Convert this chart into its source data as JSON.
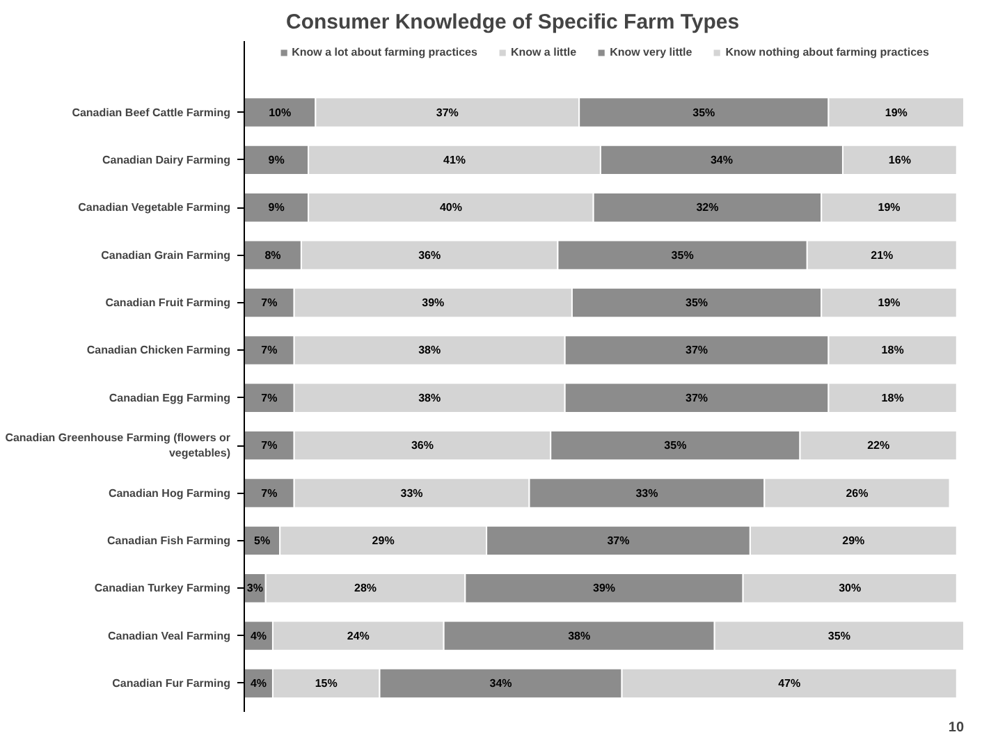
{
  "chart_data": {
    "type": "bar",
    "orientation": "horizontal",
    "stacked": true,
    "title": "Consumer Knowledge of Specific Farm Types",
    "categories": [
      "Canadian Beef Cattle Farming",
      "Canadian Dairy Farming",
      "Canadian Vegetable Farming",
      "Canadian Grain Farming",
      "Canadian Fruit Farming",
      "Canadian Chicken Farming",
      "Canadian Egg Farming",
      "Canadian Greenhouse Farming (flowers or vegetables)",
      "Canadian Hog Farming",
      "Canadian Fish Farming",
      "Canadian Turkey Farming",
      "Canadian Veal Farming",
      "Canadian Fur Farming"
    ],
    "series": [
      {
        "name": "Know a lot about farming practices",
        "color": "#8c8c8c",
        "values": [
          10,
          9,
          9,
          8,
          7,
          7,
          7,
          7,
          7,
          5,
          3,
          4,
          4
        ],
        "value_labels": [
          "10%",
          "9%",
          "9%",
          "8%",
          "7%",
          "7%",
          "7%",
          "7%",
          "7%",
          "5%",
          "3%",
          "4%",
          "4%"
        ]
      },
      {
        "name": "Know a little",
        "color": "#d4d4d4",
        "values": [
          37,
          41,
          40,
          36,
          39,
          38,
          38,
          36,
          33,
          29,
          28,
          24,
          15
        ],
        "value_labels": [
          "37%",
          "41%",
          "40%",
          "36%",
          "39%",
          "38%",
          "38%",
          "36%",
          "33%",
          "29%",
          "28%",
          "24%",
          "15%"
        ]
      },
      {
        "name": "Know very little",
        "color": "#8c8c8c",
        "values": [
          35,
          34,
          32,
          35,
          35,
          37,
          37,
          35,
          33,
          37,
          39,
          38,
          34
        ],
        "value_labels": [
          "35%",
          "34%",
          "32%",
          "35%",
          "35%",
          "37%",
          "37%",
          "35%",
          "33%",
          "37%",
          "39%",
          "38%",
          "34%"
        ]
      },
      {
        "name": "Know nothing about farming practices",
        "color": "#d4d4d4",
        "values": [
          19,
          16,
          19,
          21,
          19,
          18,
          18,
          22,
          26,
          29,
          30,
          35,
          47
        ],
        "value_labels": [
          "19%",
          "16%",
          "19%",
          "21%",
          "19%",
          "18%",
          "18%",
          "22%",
          "26%",
          "29%",
          "30%",
          "35%",
          "47%"
        ]
      }
    ],
    "grid": false,
    "legend": "top",
    "tick_labels": "y",
    "annotations": [
      "10"
    ]
  }
}
